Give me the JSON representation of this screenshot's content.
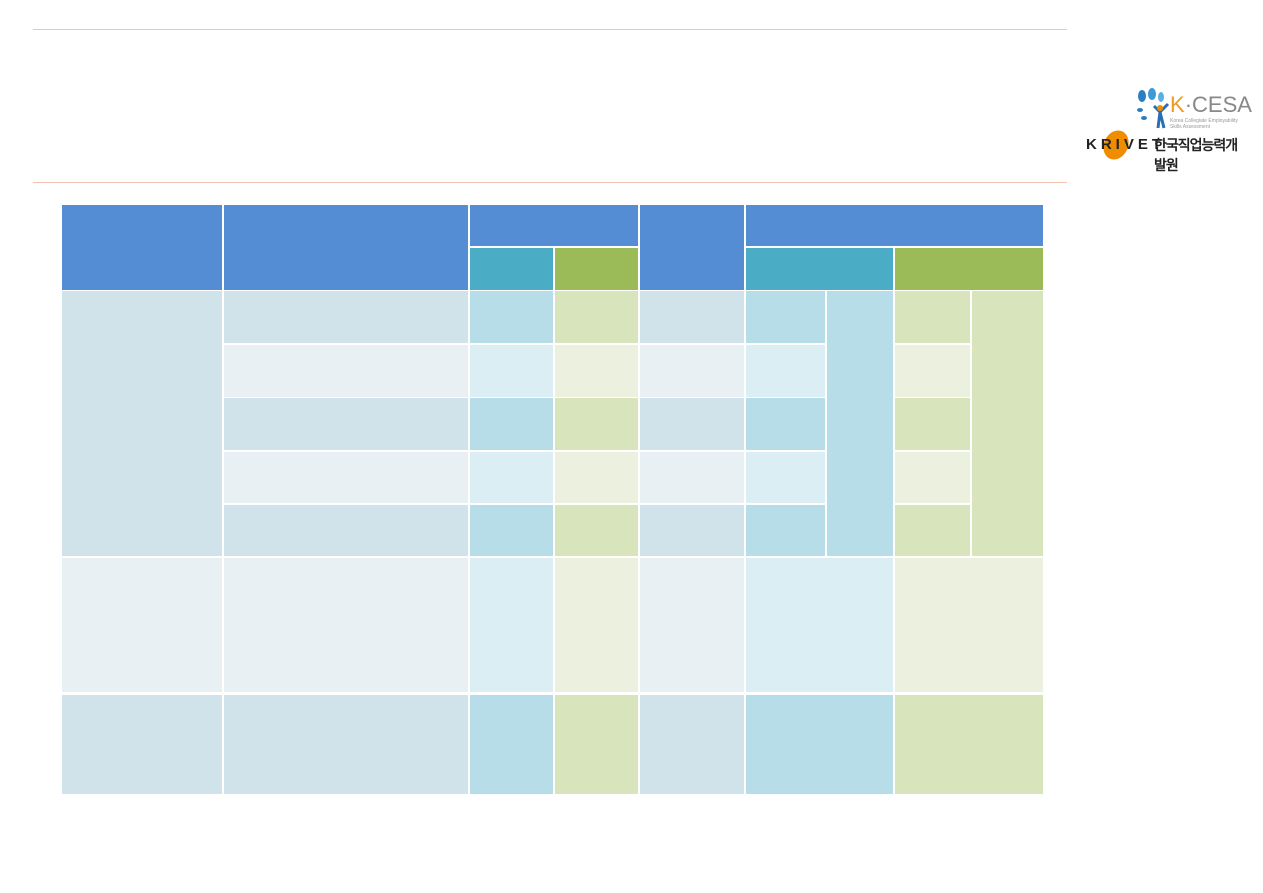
{
  "logo": {
    "kcesa_prefix": "K",
    "kcesa_rest": "·CESA",
    "kcesa_subtitle": "Korea Collegiate Employability Skills Assessment",
    "krivet": "KRIVET",
    "krivet_korean": "한국직업능력개발원"
  },
  "colors": {
    "header_blue": "#548dd4",
    "header_teal": "#4bacc6",
    "header_green": "#9bbb59",
    "body_grey_dark": "#d0e3ea",
    "body_grey_light": "#e8f0f3",
    "body_teal_dark": "#b6dde8",
    "body_teal_light": "#dbeef4",
    "body_green_dark": "#d8e4bc",
    "body_green_light": "#ebf1de",
    "rule": "#f2c4b2"
  }
}
